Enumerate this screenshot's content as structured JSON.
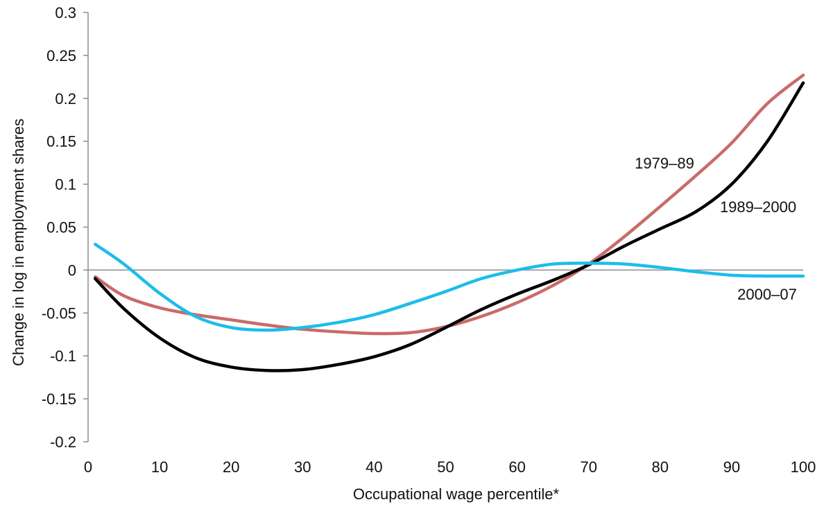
{
  "chart_data": {
    "type": "line",
    "title": "",
    "xlabel": "Occupational wage percentile*",
    "ylabel": "Change in log in employment shares",
    "xlim": [
      0,
      100
    ],
    "ylim": [
      -0.2,
      0.3
    ],
    "grid": false,
    "legend": "inline labels",
    "x_ticks": [
      "0",
      "10",
      "20",
      "30",
      "40",
      "50",
      "60",
      "70",
      "80",
      "90",
      "100"
    ],
    "y_ticks": [
      "0.3",
      "0.25",
      "0.2",
      "0.15",
      "0.1",
      "0.05",
      "0",
      "-0.05",
      "-0.1",
      "-0.15",
      "-0.2"
    ],
    "series": [
      {
        "name": "1979–89",
        "color": "#c96b68",
        "x": [
          1,
          5,
          10,
          15,
          20,
          25,
          30,
          35,
          40,
          45,
          50,
          55,
          60,
          65,
          70,
          75,
          80,
          85,
          90,
          95,
          100
        ],
        "y": [
          -0.008,
          -0.03,
          -0.044,
          -0.052,
          -0.058,
          -0.064,
          -0.069,
          -0.072,
          -0.074,
          -0.073,
          -0.066,
          -0.054,
          -0.038,
          -0.018,
          0.007,
          0.039,
          0.074,
          0.11,
          0.148,
          0.194,
          0.227
        ]
      },
      {
        "name": "1989–2000",
        "color": "#000000",
        "x": [
          1,
          5,
          10,
          15,
          20,
          25,
          30,
          35,
          40,
          45,
          50,
          55,
          60,
          65,
          70,
          75,
          80,
          85,
          90,
          95,
          100
        ],
        "y": [
          -0.01,
          -0.045,
          -0.079,
          -0.102,
          -0.113,
          -0.117,
          -0.116,
          -0.11,
          -0.101,
          -0.087,
          -0.067,
          -0.046,
          -0.028,
          -0.012,
          0.006,
          0.028,
          0.048,
          0.068,
          0.1,
          0.15,
          0.218
        ]
      },
      {
        "name": "2000–07",
        "color": "#1cbdea",
        "x": [
          1,
          5,
          10,
          15,
          20,
          25,
          30,
          35,
          40,
          45,
          50,
          55,
          60,
          65,
          70,
          75,
          80,
          85,
          90,
          95,
          100
        ],
        "y": [
          0.03,
          0.007,
          -0.027,
          -0.054,
          -0.067,
          -0.07,
          -0.067,
          -0.061,
          -0.052,
          -0.039,
          -0.025,
          -0.01,
          0,
          0.007,
          0.008,
          0.007,
          0.003,
          -0.002,
          -0.006,
          -0.007,
          -0.007
        ]
      }
    ]
  }
}
